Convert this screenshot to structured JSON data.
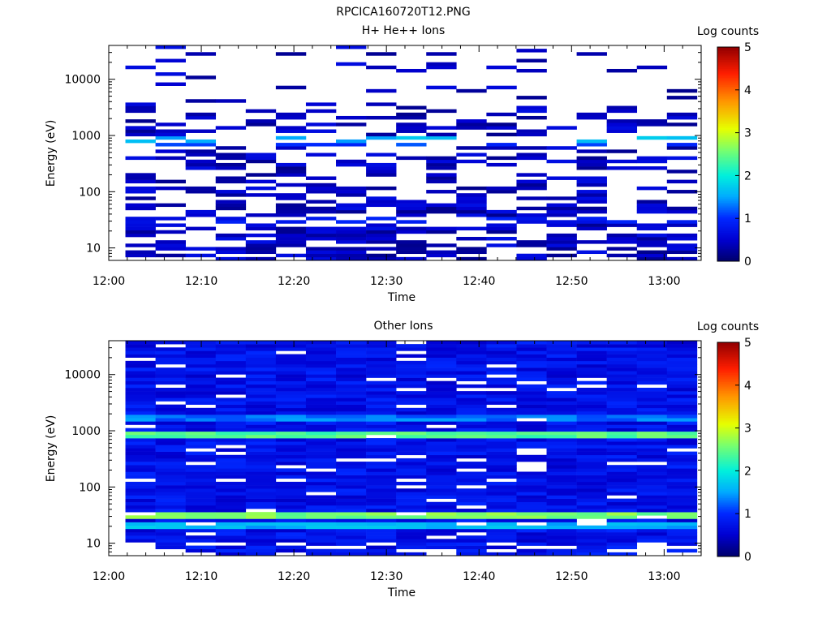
{
  "page_title": "RPCICA160720T12.PNG",
  "chart_data": [
    {
      "type": "heatmap",
      "title": "H+ He++ Ions",
      "xlabel": "Time",
      "ylabel": "Energy (eV)",
      "x_ticks": [
        "12:00",
        "12:10",
        "12:20",
        "12:30",
        "12:40",
        "12:50",
        "13:00"
      ],
      "x_range_minutes": [
        0,
        64
      ],
      "y_scale": "log",
      "y_range": [
        6,
        40000
      ],
      "y_ticks": [
        {
          "value": 10,
          "label": "10"
        },
        {
          "value": 100,
          "label": "100"
        },
        {
          "value": 1000,
          "label": "1000"
        },
        {
          "value": 10000,
          "label": "10000"
        }
      ],
      "colorbar": {
        "label": "Log counts",
        "range": [
          0,
          5
        ],
        "ticks": [
          "0",
          "1",
          "2",
          "3",
          "4",
          "5"
        ]
      },
      "time_bins": 19,
      "sparse": true,
      "bands": [
        {
          "energy": 850,
          "level": 1.6,
          "note": "bright line near 850 eV"
        },
        {
          "energy": 750,
          "level": 1.1
        },
        {
          "energy": 30,
          "level": 0.8
        }
      ],
      "grid": false
    },
    {
      "type": "heatmap",
      "title": "Other Ions",
      "xlabel": "Time",
      "ylabel": "Energy (eV)",
      "x_ticks": [
        "12:00",
        "12:10",
        "12:20",
        "12:30",
        "12:40",
        "12:50",
        "13:00"
      ],
      "x_range_minutes": [
        0,
        64
      ],
      "y_scale": "log",
      "y_range": [
        6,
        40000
      ],
      "y_ticks": [
        {
          "value": 10,
          "label": "10"
        },
        {
          "value": 100,
          "label": "100"
        },
        {
          "value": 1000,
          "label": "1000"
        },
        {
          "value": 10000,
          "label": "10000"
        }
      ],
      "colorbar": {
        "label": "Log counts",
        "range": [
          0,
          5
        ],
        "ticks": [
          "0",
          "1",
          "2",
          "3",
          "4",
          "5"
        ]
      },
      "time_bins": 19,
      "sparse": false,
      "bands": [
        {
          "energy": 900,
          "level": 2.4,
          "note": "bright band near 900 eV"
        },
        {
          "energy": 1700,
          "level": 1.3
        },
        {
          "energy": 30,
          "level": 2.6,
          "note": "bright band 25-35 eV"
        },
        {
          "energy": 22,
          "level": 1.6
        }
      ],
      "grid": false
    }
  ]
}
